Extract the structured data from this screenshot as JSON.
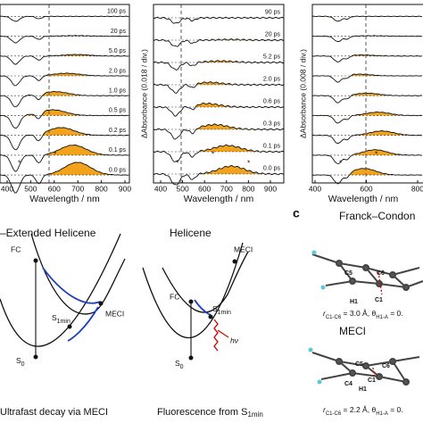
{
  "panels": [
    {
      "delays": [
        "100 ps",
        "20 ps",
        "5.0 ps",
        "2.0 ps",
        "1.0 ps",
        "0.5 ps",
        "0.2 ps",
        "0.1 ps",
        "0.0 ps"
      ],
      "x_ticks": [
        "400",
        "500",
        "600",
        "700",
        "800",
        "900"
      ],
      "x_label": "Wavelength / nm",
      "stars": [
        "*",
        "*"
      ]
    },
    {
      "delays": [
        "90 ps",
        "20 ps",
        "5.2 ps",
        "2.0 ps",
        "0.6 ps",
        "0.3 ps",
        "0.1 ps",
        "0.0 ps"
      ],
      "x_ticks": [
        "400",
        "500",
        "600",
        "700",
        "800",
        "900"
      ],
      "x_label": "Wavelength / nm",
      "y_label": "ΔAbsorbance (0.018 / div.)",
      "stars": [
        "*",
        "*",
        "*"
      ]
    },
    {
      "x_ticks": [
        "400",
        "600",
        "800"
      ],
      "x_label": "Wavelength / nm",
      "y_label": "ΔAbsorbance (0.008 / div.)",
      "stars": [
        "*",
        "*"
      ]
    }
  ],
  "diagrams": {
    "left": {
      "title": "–Extended Helicene",
      "fc": "FC",
      "s1": {
        "base": "S",
        "sub": "1min"
      },
      "meci": "MECI",
      "s0": {
        "base": "S",
        "sub": "0"
      },
      "caption": "Ultrafast decay via MECI"
    },
    "middle": {
      "title": "Helicene",
      "fc": "FC",
      "s1": {
        "base": "S",
        "sub": "1min"
      },
      "meci": "MECI",
      "s0": {
        "base": "S",
        "sub": "0"
      },
      "hv": "hν",
      "caption": {
        "text": "Fluorescence from S",
        "sub": "1min"
      }
    }
  },
  "structures": {
    "label": "c",
    "title": "Franck–Condon",
    "meci": "MECI",
    "atoms1": [
      "C6",
      "C5",
      "H1",
      "C1"
    ],
    "atoms2": [
      "C6",
      "C5",
      "C1",
      "H1",
      "C4"
    ],
    "r1": {
      "r": "r",
      "rsub": "C1-C6",
      "mid": " = 3.0 Å, θ",
      "tsub": "H1-A",
      "end": " = 0."
    },
    "r2": {
      "r": "r",
      "rsub": "C1-C6",
      "mid": " = 2.2 Å, θ",
      "tsub": "H1-A",
      "end": " = 0."
    }
  }
}
